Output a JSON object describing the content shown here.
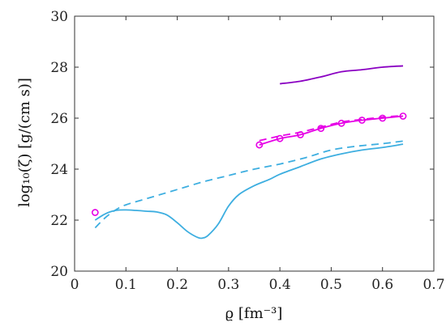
{
  "chart_data": {
    "type": "line",
    "xlabel": "ϱ [fm⁻³]",
    "ylabel": "log₁₀(ζ) [g/(cm s)]",
    "xlim": [
      0,
      0.7
    ],
    "ylim": [
      20,
      30
    ],
    "xticks": [
      "0",
      "0.1",
      "0.2",
      "0.3",
      "0.4",
      "0.5",
      "0.6",
      "0.7"
    ],
    "yticks": [
      "20",
      "22",
      "24",
      "26",
      "28",
      "30"
    ],
    "grid": false,
    "legend": "none",
    "series": [
      {
        "color": "#3daee0",
        "style": "solid",
        "x": [
          0.04,
          0.06,
          0.08,
          0.1,
          0.12,
          0.14,
          0.16,
          0.18,
          0.2,
          0.22,
          0.24,
          0.25,
          0.26,
          0.28,
          0.3,
          0.32,
          0.35,
          0.38,
          0.4,
          0.44,
          0.48,
          0.52,
          0.56,
          0.6,
          0.64
        ],
        "y": [
          22.0,
          22.25,
          22.38,
          22.4,
          22.38,
          22.35,
          22.32,
          22.2,
          21.9,
          21.55,
          21.32,
          21.3,
          21.4,
          21.85,
          22.55,
          23.0,
          23.35,
          23.6,
          23.8,
          24.1,
          24.4,
          24.6,
          24.75,
          24.85,
          24.98
        ]
      },
      {
        "color": "#3daee0",
        "style": "dashed",
        "x": [
          0.04,
          0.06,
          0.08,
          0.1,
          0.15,
          0.2,
          0.25,
          0.3,
          0.35,
          0.4,
          0.45,
          0.5,
          0.55,
          0.6,
          0.64
        ],
        "y": [
          21.7,
          22.1,
          22.4,
          22.6,
          22.9,
          23.2,
          23.5,
          23.75,
          24.0,
          24.2,
          24.45,
          24.75,
          24.9,
          25.0,
          25.1
        ]
      },
      {
        "color": "#e600e6",
        "style": "solid-markers",
        "x": [
          0.36,
          0.4,
          0.44,
          0.48,
          0.52,
          0.56,
          0.6,
          0.64
        ],
        "y": [
          24.95,
          25.2,
          25.35,
          25.6,
          25.8,
          25.92,
          26.0,
          26.08
        ]
      },
      {
        "color": "#e600e6",
        "style": "dashed",
        "x": [
          0.36,
          0.4,
          0.44,
          0.48,
          0.52,
          0.56,
          0.6,
          0.64
        ],
        "y": [
          25.12,
          25.3,
          25.45,
          25.65,
          25.85,
          25.95,
          26.04,
          26.1
        ]
      },
      {
        "color": "#e600e6",
        "style": "markers",
        "x": [
          0.04
        ],
        "y": [
          22.3
        ]
      },
      {
        "color": "#8a00c2",
        "style": "solid",
        "x": [
          0.4,
          0.44,
          0.48,
          0.52,
          0.56,
          0.6,
          0.64
        ],
        "y": [
          27.35,
          27.45,
          27.62,
          27.82,
          27.9,
          28.0,
          28.05
        ]
      }
    ]
  }
}
